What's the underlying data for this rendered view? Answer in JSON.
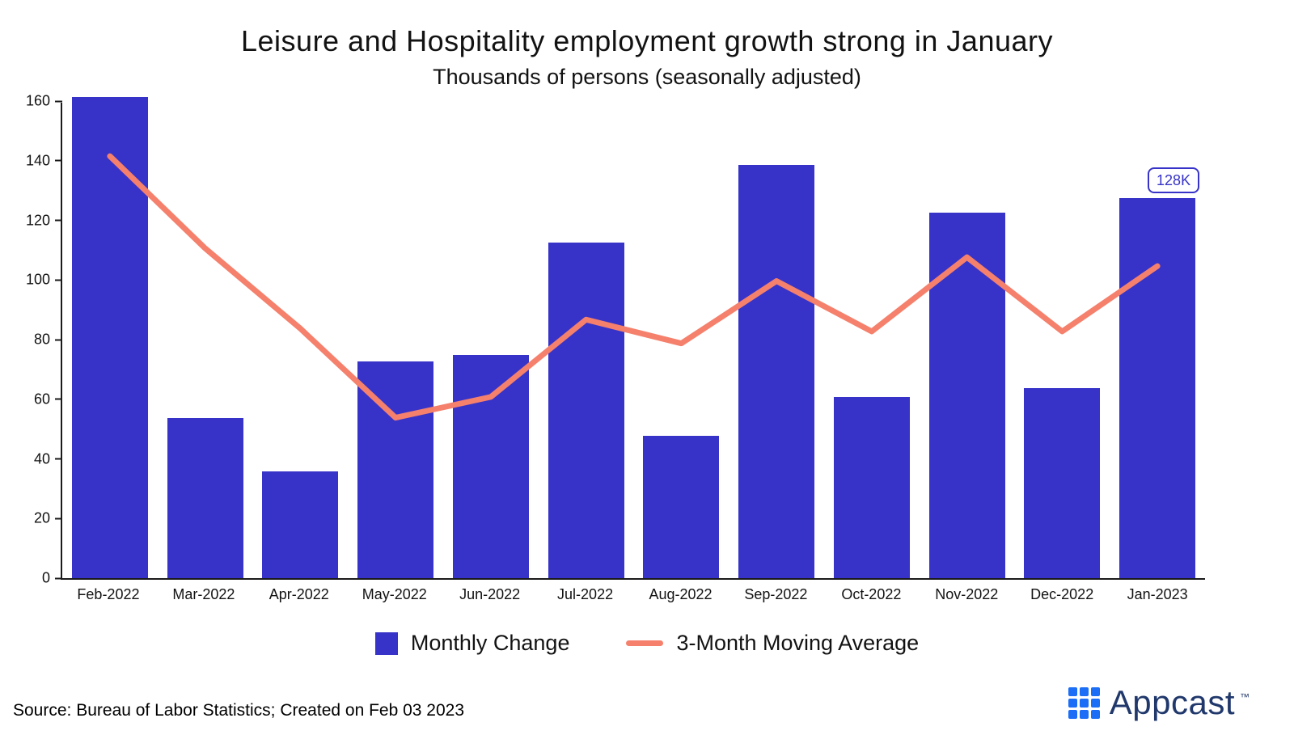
{
  "title": "Leisure and Hospitality employment growth strong in January",
  "subtitle": "Thousands of persons (seasonally adjusted)",
  "annotation": "128K",
  "legend": {
    "bar_label": "Monthly Change",
    "line_label": "3-Month Moving Average"
  },
  "source": "Source: Bureau of Labor Statistics; Created on Feb 03 2023",
  "brand": {
    "name": "Appcast",
    "tm": "™"
  },
  "colors": {
    "bar": "#3733c8",
    "line": "#f5806c",
    "axis": "#1a1a1a",
    "annotation": "#3733c8",
    "logo_blue": "#1b6ef5",
    "logo_text": "#20386b"
  },
  "chart_data": {
    "type": "bar",
    "title": "Leisure and Hospitality employment growth strong in January",
    "subtitle": "Thousands of persons (seasonally adjusted)",
    "categories": [
      "Feb-2022",
      "Mar-2022",
      "Apr-2022",
      "May-2022",
      "Jun-2022",
      "Jul-2022",
      "Aug-2022",
      "Sep-2022",
      "Oct-2022",
      "Nov-2022",
      "Dec-2022",
      "Jan-2023"
    ],
    "series": [
      {
        "name": "Monthly Change",
        "type": "bar",
        "values": [
          162,
          54,
          36,
          73,
          75,
          113,
          48,
          139,
          61,
          123,
          64,
          128
        ]
      },
      {
        "name": "3-Month Moving Average",
        "type": "line",
        "values": [
          142,
          111,
          84,
          54,
          61,
          87,
          79,
          100,
          83,
          108,
          83,
          105
        ]
      }
    ],
    "xlabel": "",
    "ylabel": "",
    "ylim": [
      0,
      160
    ],
    "yticks": [
      0,
      20,
      40,
      60,
      80,
      100,
      120,
      140,
      160
    ],
    "grid": false,
    "legend_position": "bottom",
    "annotations": [
      {
        "target": "Jan-2023",
        "series": "Monthly Change",
        "text": "128K"
      }
    ]
  }
}
